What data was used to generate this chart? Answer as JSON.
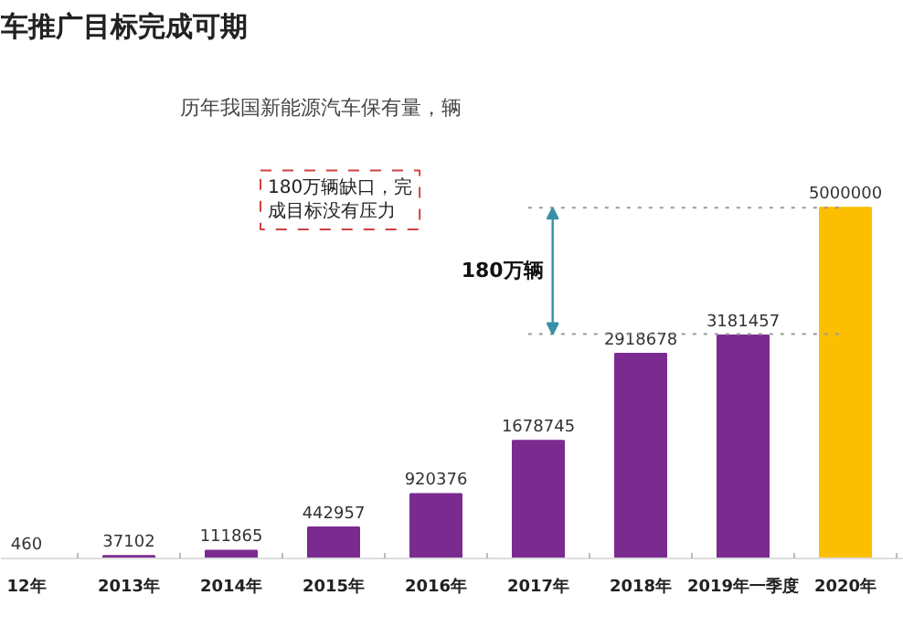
{
  "chart_data": {
    "type": "bar",
    "title": "车推广目标完成可期",
    "subtitle": "历年我国新能源汽车保有量，辆",
    "categories": [
      "12年",
      "2013年",
      "2014年",
      "2015年",
      "2016年",
      "2017年",
      "2018年",
      "2019年一季度",
      "2020年"
    ],
    "values": [
      460,
      37102,
      111865,
      442957,
      920376,
      1678745,
      2918678,
      3181457,
      5000000
    ],
    "colors": [
      "#7b2a90",
      "#7b2a90",
      "#7b2a90",
      "#7b2a90",
      "#7b2a90",
      "#7b2a90",
      "#7b2a90",
      "#7b2a90",
      "#fbbf00"
    ],
    "data_labels": true,
    "grid": false,
    "ref_lines": [
      {
        "axis": "y",
        "value": 5000000,
        "label": null,
        "line_style": "dotted",
        "color": "#999999"
      },
      {
        "axis": "y",
        "value": 3200000,
        "label": null,
        "line_style": "dotted",
        "color": "#999999"
      }
    ],
    "annotations": [
      "180万辆缺口，完成目标没有压力",
      "180万辆"
    ]
  }
}
